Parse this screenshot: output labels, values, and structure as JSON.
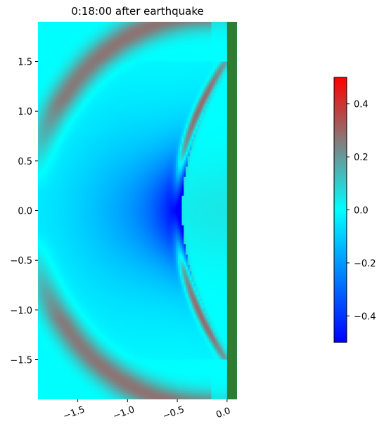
{
  "chart_data": {
    "type": "heatmap",
    "title": "0:18:00 after earthquake",
    "xlabel": "",
    "ylabel": "",
    "xlim": [
      -1.9,
      0.1
    ],
    "ylim": [
      -1.9,
      1.9
    ],
    "x_ticks": [
      {
        "value": -1.5,
        "label": "−1.5"
      },
      {
        "value": -1.0,
        "label": "−1.0"
      },
      {
        "value": -0.5,
        "label": "−0.5"
      },
      {
        "value": 0.0,
        "label": "0.0"
      }
    ],
    "x_tick_rotation_deg": -20,
    "y_ticks": [
      {
        "value": 1.5,
        "label": "1.5"
      },
      {
        "value": 1.0,
        "label": "1.0"
      },
      {
        "value": 0.5,
        "label": "0.5"
      },
      {
        "value": 0.0,
        "label": "0.0"
      },
      {
        "value": -0.5,
        "label": "−0.5"
      },
      {
        "value": -1.0,
        "label": "−1.0"
      },
      {
        "value": -1.5,
        "label": "−1.5"
      }
    ],
    "land_boundary_x": 0.0,
    "land_color": "#2e7d32",
    "wave_field": {
      "source_x": 0.0,
      "source_y": 0.0,
      "front_center_x": -0.45,
      "front_half_height": 1.45,
      "front_bulge": 0.62,
      "front_amplitude": 0.4,
      "trough_amplitude": -0.45,
      "outer_ring_radius": 1.82,
      "outer_ring_amplitude": 0.28,
      "grid_nx": 96,
      "grid_ny": 180
    },
    "colorbar": {
      "vmin": -0.5,
      "vmax": 0.5,
      "ticks": [
        {
          "value": 0.4,
          "label": "0.4"
        },
        {
          "value": 0.2,
          "label": "0.2"
        },
        {
          "value": 0.0,
          "label": "0.0"
        },
        {
          "value": -0.2,
          "label": "−0.2"
        },
        {
          "value": -0.4,
          "label": "−0.4"
        }
      ],
      "colormap": [
        {
          "value": -0.5,
          "color": "#0000ff"
        },
        {
          "value": -0.25,
          "color": "#0080ff"
        },
        {
          "value": 0.0,
          "color": "#00ffff"
        },
        {
          "value": 0.25,
          "color": "#808080"
        },
        {
          "value": 0.5,
          "color": "#ff0000"
        }
      ]
    },
    "grid": false
  }
}
